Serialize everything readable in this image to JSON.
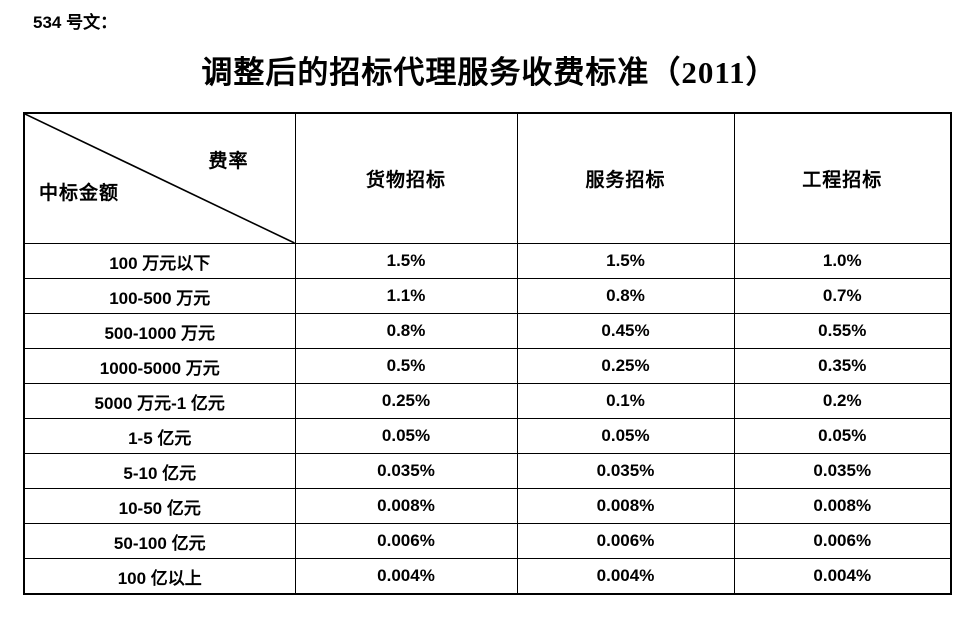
{
  "doc_label": "534 号文：",
  "title": "调整后的招标代理服务收费标准（2011）",
  "table": {
    "corner": {
      "top_right": "费率",
      "bottom_left": "中标金额"
    },
    "columns": [
      "货物招标",
      "服务招标",
      "工程招标"
    ],
    "rows": [
      {
        "label": "100 万元以下",
        "values": [
          "1.5%",
          "1.5%",
          "1.0%"
        ]
      },
      {
        "label": "100-500 万元",
        "values": [
          "1.1%",
          "0.8%",
          "0.7%"
        ]
      },
      {
        "label": "500-1000 万元",
        "values": [
          "0.8%",
          "0.45%",
          "0.55%"
        ]
      },
      {
        "label": "1000-5000 万元",
        "values": [
          "0.5%",
          "0.25%",
          "0.35%"
        ]
      },
      {
        "label": "5000 万元-1 亿元",
        "values": [
          "0.25%",
          "0.1%",
          "0.2%"
        ]
      },
      {
        "label": "1-5 亿元",
        "values": [
          "0.05%",
          "0.05%",
          "0.05%"
        ]
      },
      {
        "label": "5-10 亿元",
        "values": [
          "0.035%",
          "0.035%",
          "0.035%"
        ]
      },
      {
        "label": "10-50 亿元",
        "values": [
          "0.008%",
          "0.008%",
          "0.008%"
        ]
      },
      {
        "label": "50-100 亿元",
        "values": [
          "0.006%",
          "0.006%",
          "0.006%"
        ]
      },
      {
        "label": "100 亿以上",
        "values": [
          "0.004%",
          "0.004%",
          "0.004%"
        ]
      }
    ]
  },
  "colors": {
    "text": "#000000",
    "background": "#ffffff",
    "border": "#000000"
  }
}
